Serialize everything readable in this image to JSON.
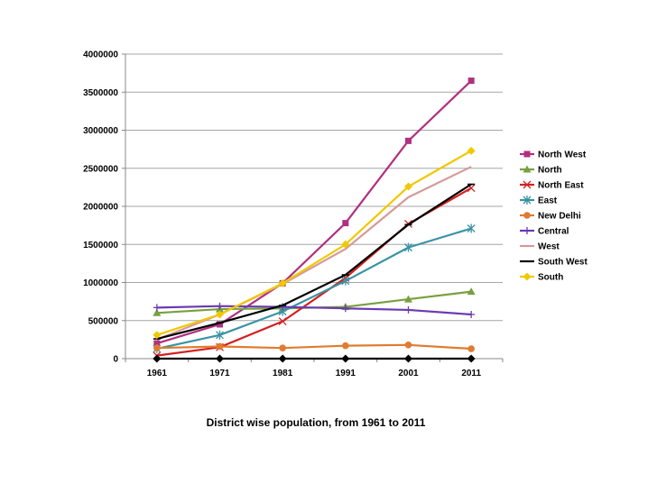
{
  "chart_data": {
    "type": "line",
    "title": "District wise population, from 1961 to 2011",
    "x": [
      "1961",
      "1971",
      "1981",
      "1991",
      "2001",
      "2011"
    ],
    "ylim": [
      0,
      4000000
    ],
    "yticks": [
      "0",
      "500000",
      "1000000",
      "1500000",
      "2000000",
      "2500000",
      "3000000",
      "3500000",
      "4000000"
    ],
    "grid": true,
    "legend_position": "right",
    "series": [
      {
        "name": "North West",
        "color": "#b1307f",
        "marker": "square",
        "values": [
          200000,
          450000,
          990000,
          1780000,
          2860000,
          3650000
        ]
      },
      {
        "name": "North",
        "color": "#77a03e",
        "marker": "triangle",
        "values": [
          600000,
          650000,
          660000,
          680000,
          780000,
          880000
        ]
      },
      {
        "name": "North East",
        "color": "#d42020",
        "marker": "x",
        "values": [
          40000,
          150000,
          490000,
          1060000,
          1770000,
          2240000
        ]
      },
      {
        "name": "East",
        "color": "#3a93a5",
        "marker": "star",
        "values": [
          130000,
          310000,
          620000,
          1020000,
          1460000,
          1710000
        ]
      },
      {
        "name": "New Delhi",
        "color": "#e07b2f",
        "marker": "circle",
        "values": [
          140000,
          160000,
          140000,
          170000,
          180000,
          130000
        ]
      },
      {
        "name": "Central",
        "color": "#6b3ab2",
        "marker": "plus",
        "values": [
          670000,
          690000,
          680000,
          660000,
          640000,
          580000
        ]
      },
      {
        "name": "West",
        "color": "#d49a9a",
        "marker": "none",
        "values": [
          250000,
          580000,
          980000,
          1440000,
          2120000,
          2520000
        ]
      },
      {
        "name": "South West",
        "color": "#000000",
        "marker": "dash",
        "values": [
          260000,
          470000,
          700000,
          1100000,
          1760000,
          2290000
        ]
      },
      {
        "name": "South",
        "color": "#f0c800",
        "marker": "diamond",
        "values": [
          310000,
          580000,
          990000,
          1500000,
          2260000,
          2730000
        ]
      },
      {
        "name": "",
        "color": "#000000",
        "marker": "diamond",
        "values": [
          0,
          0,
          0,
          0,
          0,
          0
        ]
      }
    ]
  }
}
